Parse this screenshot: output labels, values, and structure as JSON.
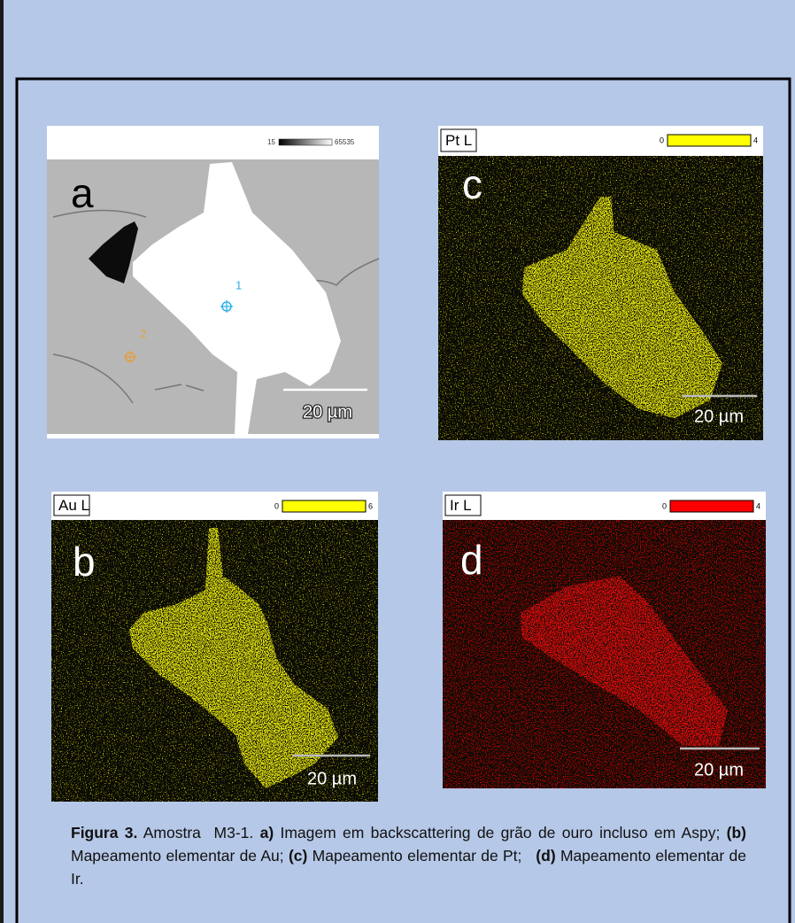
{
  "figure": {
    "panels": [
      {
        "letter": "a",
        "scale_min": 15,
        "scale_max": 65535,
        "scale_bar": "20 µm",
        "points": [
          "1",
          "2"
        ]
      },
      {
        "letter": "b",
        "label": "Au L",
        "scale_min": 0,
        "scale_max": 6,
        "scale_bar": "20 µm"
      },
      {
        "letter": "c",
        "label": "Pt L",
        "scale_min": 0,
        "scale_max": 4,
        "scale_bar": "20 µm"
      },
      {
        "letter": "d",
        "label": "Ir L",
        "scale_min": 0,
        "scale_max": 4,
        "scale_bar": "20 µm"
      }
    ]
  },
  "caption": {
    "runs": [
      {
        "text": "Figura 3.",
        "bold": true
      },
      {
        "text": " Amostra  M3-1. ",
        "bold": false
      },
      {
        "text": "a)",
        "bold": true
      },
      {
        "text": " Imagem em backscattering de grão de ouro incluso em Aspy; ",
        "bold": false
      },
      {
        "text": "(b)",
        "bold": true
      },
      {
        "text": " Mapeamento elementar de Au; ",
        "bold": false
      },
      {
        "text": "(c)",
        "bold": true
      },
      {
        "text": " Mapeamento elementar de Pt;   ",
        "bold": false
      },
      {
        "text": "(d)",
        "bold": true
      },
      {
        "text": " Mapeamento elementar de Ir.",
        "bold": false
      }
    ]
  }
}
